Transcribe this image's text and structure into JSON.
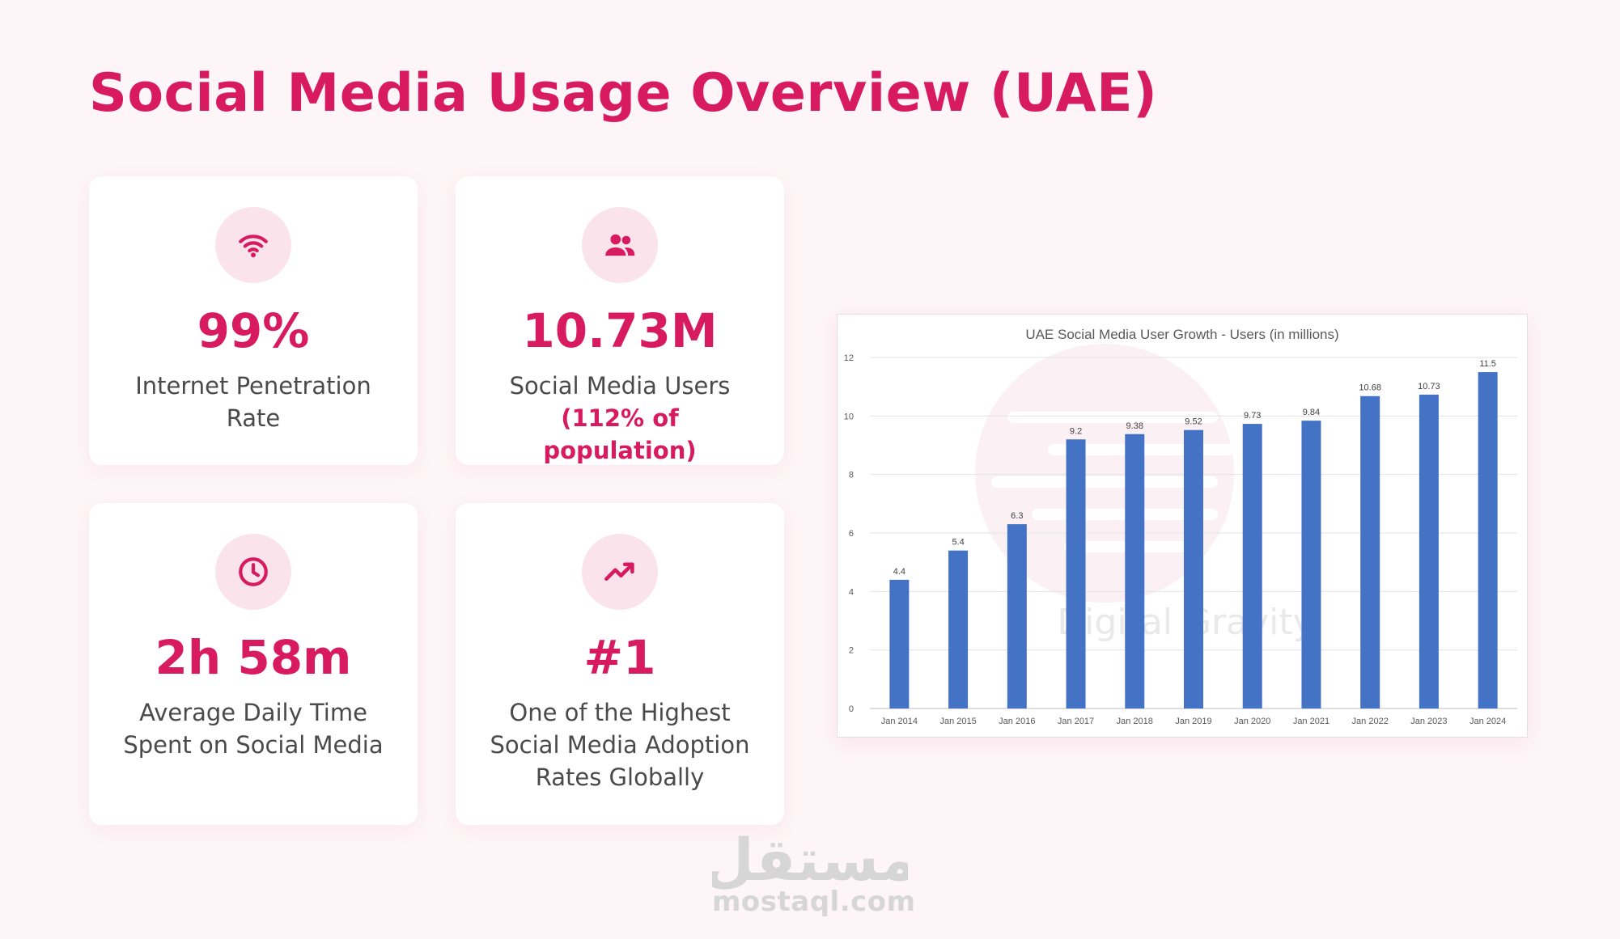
{
  "title": "Social Media Usage Overview (UAE)",
  "colors": {
    "accent": "#d81b60",
    "icon_bg": "#fbe3ec",
    "bar": "#4472c4"
  },
  "cards": [
    {
      "icon": "wifi-icon",
      "value": "99%",
      "label": "Internet Penetration Rate",
      "sub": ""
    },
    {
      "icon": "users-icon",
      "value": "10.73M",
      "label": "Social Media Users",
      "sub": "(112% of population)"
    },
    {
      "icon": "clock-icon",
      "value": "2h 58m",
      "label": "Average Daily Time Spent on Social Media",
      "sub": ""
    },
    {
      "icon": "trending-up-icon",
      "value": "#1",
      "label": "One of the Highest Social Media Adoption Rates Globally",
      "sub": ""
    }
  ],
  "chart_data": {
    "type": "bar",
    "title": "UAE Social Media User Growth - Users (in millions)",
    "categories": [
      "Jan 2014",
      "Jan 2015",
      "Jan 2016",
      "Jan 2017",
      "Jan 2018",
      "Jan 2019",
      "Jan 2020",
      "Jan 2021",
      "Jan 2022",
      "Jan 2023",
      "Jan 2024"
    ],
    "values": [
      4.4,
      5.4,
      6.3,
      9.2,
      9.38,
      9.52,
      9.73,
      9.84,
      10.68,
      10.73,
      11.5
    ],
    "ylim": [
      0,
      12
    ],
    "yticks": [
      0,
      2,
      4,
      6,
      8,
      10,
      12
    ],
    "grid": true,
    "xlabel": "",
    "ylabel": ""
  },
  "watermarks": {
    "chart": "Digital Gravity",
    "site_arabic": "مستقل",
    "site": "mostaql.com"
  }
}
